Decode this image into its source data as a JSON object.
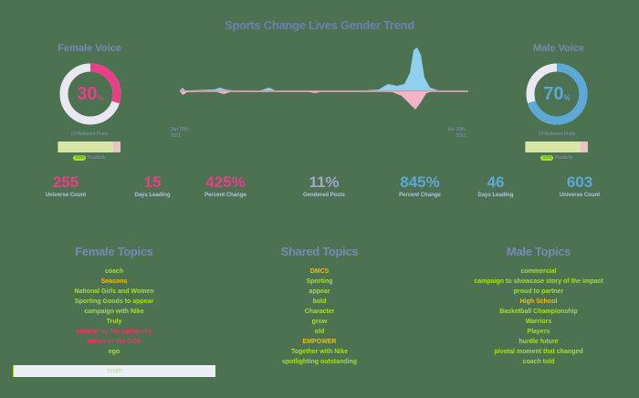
{
  "title": "Sports Change Lives Gender Trend",
  "female": {
    "label": "Female Voice",
    "percent": "30",
    "percent_suffix": "%",
    "sublabel": "Of Relevant Posts",
    "positivity_value": "93%",
    "positivity_label": "Positivity",
    "color": "#ea3e8b",
    "stats": [
      {
        "value": "255",
        "label": "Universe Count"
      },
      {
        "value": "15",
        "label": "Days Leading"
      },
      {
        "value": "425%",
        "label": "Percent Change"
      }
    ]
  },
  "shared_stat": {
    "value": "11%",
    "label": "Gendered Posts"
  },
  "male": {
    "label": "Male Voice",
    "percent": "70",
    "percent_suffix": "%",
    "sublabel": "Of Relevant Posts",
    "positivity_value": "93%",
    "positivity_label": "Positivity",
    "color": "#5ba9d8",
    "stats": [
      {
        "value": "845%",
        "label": "Percent Change"
      },
      {
        "value": "46",
        "label": "Days Leading"
      },
      {
        "value": "603",
        "label": "Universe Count"
      }
    ]
  },
  "trend_chart": {
    "start_label_line1": "Jan 25th,",
    "start_label_line2": "2021",
    "end_label_line1": "Jun 15th,",
    "end_label_line2": "2021",
    "male_color": "#8fd0ee",
    "female_color": "#f4b4c8"
  },
  "chart_data": {
    "type": "area",
    "title": "Sports Change Lives Gender Trend",
    "xlabel": "",
    "ylabel": "",
    "x_range": [
      "Jan 25th, 2021",
      "Jun 15th, 2021"
    ],
    "series": [
      {
        "name": "Male",
        "color": "#8fd0ee",
        "values": [
          1,
          0,
          1,
          2,
          1,
          0,
          1,
          1,
          0,
          0,
          1,
          2,
          1,
          0,
          0,
          0,
          1,
          1,
          0,
          0,
          0,
          0,
          1,
          0,
          0,
          8,
          8,
          10,
          20,
          45,
          15,
          2,
          1,
          1,
          1,
          1,
          0,
          0
        ]
      },
      {
        "name": "Female",
        "color": "#f4b4c8",
        "values": [
          3,
          1,
          1,
          1,
          2,
          0,
          1,
          0,
          0,
          0,
          1,
          0,
          0,
          0,
          0,
          0,
          1,
          0,
          0,
          0,
          0,
          1,
          1,
          0,
          0,
          1,
          2,
          4,
          10,
          20,
          6,
          1,
          0,
          0,
          0,
          0,
          0,
          0
        ]
      }
    ]
  },
  "topics": {
    "female": {
      "title": "Female Topics",
      "items": [
        {
          "text": "coach",
          "color": "green"
        },
        {
          "text": "Seasons",
          "color": "orange"
        },
        {
          "text": "National Girls and Women",
          "color": "green"
        },
        {
          "text": "Sporting Goods to appear",
          "color": "green"
        },
        {
          "text": "campaign with Nike",
          "color": "green"
        },
        {
          "text": "Truly",
          "color": "green"
        },
        {
          "text": "attempt by the patriarchy",
          "color": "red"
        },
        {
          "text": "minds of the GOP",
          "color": "red"
        },
        {
          "text": "ego",
          "color": "green"
        }
      ],
      "score_label": "score"
    },
    "shared": {
      "title": "Shared Topics",
      "items": [
        {
          "text": "DMCS",
          "color": "orange"
        },
        {
          "text": "Sporting",
          "color": "green"
        },
        {
          "text": "appear",
          "color": "green"
        },
        {
          "text": "bold",
          "color": "green"
        },
        {
          "text": "Character",
          "color": "green"
        },
        {
          "text": "grow",
          "color": "green"
        },
        {
          "text": "old",
          "color": "green"
        },
        {
          "text": "EMPOWER",
          "color": "orange"
        },
        {
          "text": "Together with Nike",
          "color": "green"
        },
        {
          "text": "spotlighting outstanding",
          "color": "green"
        }
      ]
    },
    "male": {
      "title": "Male Topics",
      "items": [
        {
          "text": "commercial",
          "color": "green"
        },
        {
          "text": "campaign to showcase story of the impact",
          "color": "green"
        },
        {
          "text": "proud to partner",
          "color": "green"
        },
        {
          "text": "High School",
          "color": "orange"
        },
        {
          "text": "Basketball Championship",
          "color": "green"
        },
        {
          "text": "Warriors",
          "color": "green"
        },
        {
          "text": "Players",
          "color": "green"
        },
        {
          "text": "hurdle future",
          "color": "green"
        },
        {
          "text": "pivotal moment that changed",
          "color": "green"
        },
        {
          "text": "coach told",
          "color": "green"
        }
      ]
    }
  }
}
